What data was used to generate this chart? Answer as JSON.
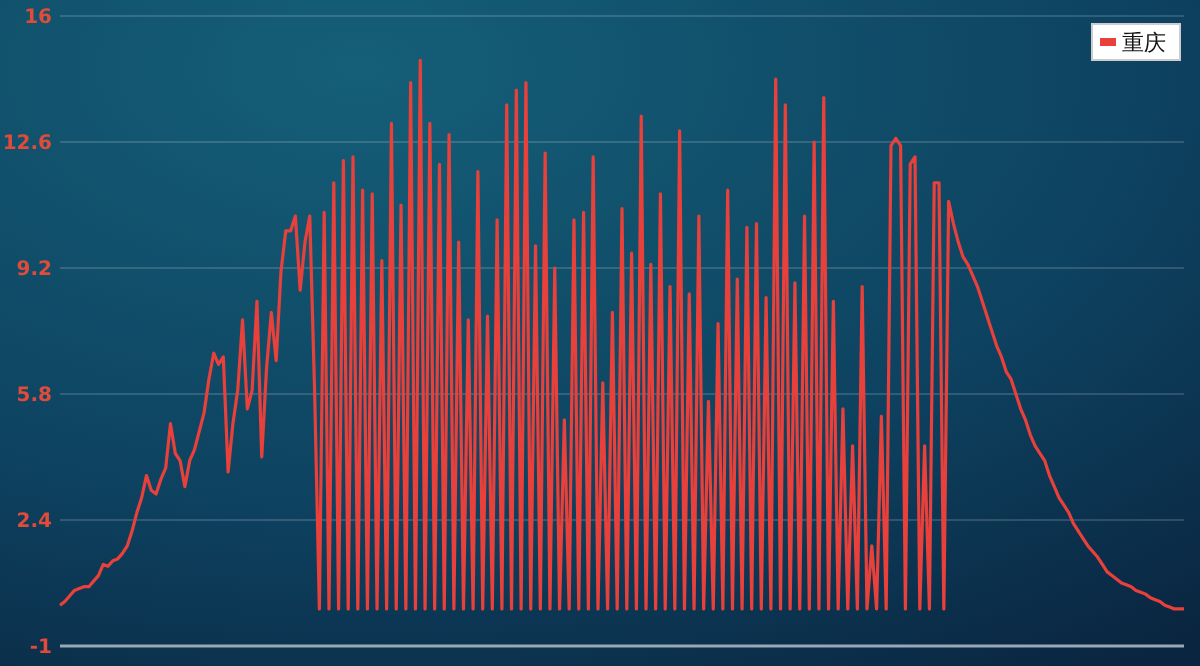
{
  "chart_data": {
    "type": "line",
    "categories": [
      null,
      null,
      null,
      null,
      null,
      null,
      null,
      null,
      null,
      null,
      null,
      null,
      null,
      null,
      null,
      null,
      null,
      null,
      null,
      null,
      null,
      null,
      null,
      null,
      null,
      null,
      null,
      null,
      null,
      null,
      null,
      null,
      null,
      null,
      null,
      null,
      null,
      null,
      null,
      null,
      null,
      null,
      null,
      null,
      null,
      null,
      null,
      null,
      null,
      null,
      null,
      null,
      null,
      null,
      null,
      null,
      null,
      null,
      null,
      null,
      null,
      null,
      null,
      null,
      null,
      null,
      null,
      null,
      null,
      null,
      null,
      null,
      null,
      null,
      null,
      null,
      null,
      null,
      null,
      null,
      null,
      null,
      null,
      null,
      null,
      null,
      null,
      null,
      null,
      null,
      null,
      null,
      null,
      null,
      null,
      null,
      null,
      null,
      null,
      null,
      null,
      null,
      null,
      null,
      null,
      null,
      null,
      null,
      null,
      null,
      null,
      null,
      null,
      null,
      null,
      null,
      null,
      null,
      null,
      null,
      null,
      null,
      null,
      null,
      null,
      null,
      null,
      null,
      null,
      null,
      null,
      null,
      null,
      null,
      null,
      null,
      null,
      null,
      null,
      null,
      null,
      null,
      null,
      null,
      null,
      null,
      null,
      null,
      null,
      null,
      null,
      null,
      null,
      null,
      null,
      null,
      null,
      null,
      null,
      null,
      null,
      null,
      null,
      null,
      null,
      null,
      null,
      null,
      null,
      null,
      null,
      null,
      null,
      null,
      null,
      null,
      null,
      null,
      null,
      null,
      null,
      null,
      null,
      null,
      null,
      null,
      null,
      null,
      null,
      null,
      null,
      null,
      null,
      null,
      null,
      null,
      null,
      null,
      null,
      null,
      null,
      null,
      null,
      null,
      null,
      null,
      null,
      null,
      null,
      null,
      null,
      null,
      null,
      null,
      null,
      null,
      null,
      null,
      null,
      null,
      null,
      null,
      null,
      null,
      null,
      null,
      null,
      null,
      null,
      null,
      null,
      null,
      null,
      null,
      null
    ],
    "series": [
      {
        "name": "重庆",
        "color": "#e8403a",
        "values": [
          0.1,
          0.2,
          0.35,
          0.5,
          0.55,
          0.6,
          0.6,
          0.75,
          0.9,
          1.2,
          1.15,
          1.3,
          1.35,
          1.5,
          1.7,
          2.1,
          2.6,
          3.0,
          3.6,
          3.2,
          3.1,
          3.5,
          3.8,
          5.0,
          4.2,
          4.0,
          3.3,
          4.0,
          4.3,
          4.8,
          5.3,
          6.2,
          6.9,
          6.6,
          6.8,
          3.7,
          5.0,
          5.9,
          7.8,
          5.4,
          5.9,
          8.3,
          4.1,
          6.5,
          8.0,
          6.7,
          9.1,
          10.2,
          10.2,
          10.6,
          8.6,
          9.9,
          10.6,
          5.9,
          0,
          10.7,
          0,
          11.5,
          0,
          12.1,
          0,
          12.2,
          0,
          11.3,
          0,
          11.2,
          0,
          9.4,
          0,
          13.1,
          0,
          10.9,
          0,
          14.2,
          0,
          14.8,
          0,
          13.1,
          0,
          12.0,
          0,
          12.8,
          0,
          9.9,
          0,
          7.8,
          0,
          11.8,
          0,
          7.9,
          0,
          10.5,
          0,
          13.6,
          0,
          14.0,
          0,
          14.2,
          0,
          9.8,
          0,
          12.3,
          0,
          9.2,
          0,
          5.1,
          0,
          10.5,
          0,
          10.7,
          0,
          12.2,
          0,
          6.1,
          0,
          8.0,
          0,
          10.8,
          0,
          9.6,
          0,
          13.3,
          0,
          9.3,
          0,
          11.2,
          0,
          8.7,
          0,
          12.9,
          0,
          8.5,
          0,
          10.6,
          0,
          5.6,
          0,
          7.7,
          0,
          11.3,
          0,
          8.9,
          0,
          10.3,
          0,
          10.4,
          0,
          8.4,
          0,
          14.3,
          0,
          13.6,
          0,
          8.8,
          0,
          10.6,
          0,
          12.6,
          0,
          13.8,
          0,
          8.3,
          0,
          5.4,
          0,
          4.4,
          0,
          8.7,
          0,
          1.7,
          0,
          5.2,
          0,
          12.5,
          12.7,
          12.5,
          0,
          12.0,
          12.2,
          0,
          4.4,
          0,
          11.5,
          11.5,
          0,
          11.0,
          10.4,
          9.9,
          9.5,
          9.3,
          9.0,
          8.7,
          8.3,
          7.9,
          7.5,
          7.1,
          6.8,
          6.4,
          6.2,
          5.8,
          5.4,
          5.1,
          4.7,
          4.4,
          4.2,
          4.0,
          3.6,
          3.3,
          3.0,
          2.8,
          2.6,
          2.3,
          2.1,
          1.9,
          1.7,
          1.55,
          1.4,
          1.2,
          1.0,
          0.9,
          0.8,
          0.7,
          0.65,
          0.6,
          0.5,
          0.45,
          0.4,
          0.3,
          0.25,
          0.2,
          0.1,
          0.05,
          0,
          0,
          0
        ]
      }
    ],
    "ylim": [
      -1,
      16
    ],
    "yticks": [
      -1,
      2.4,
      5.8,
      9.2,
      12.6,
      16
    ],
    "grid": "y",
    "legend": "top right",
    "tick_labels": "y",
    "marker": "none",
    "line_style": "solid"
  }
}
